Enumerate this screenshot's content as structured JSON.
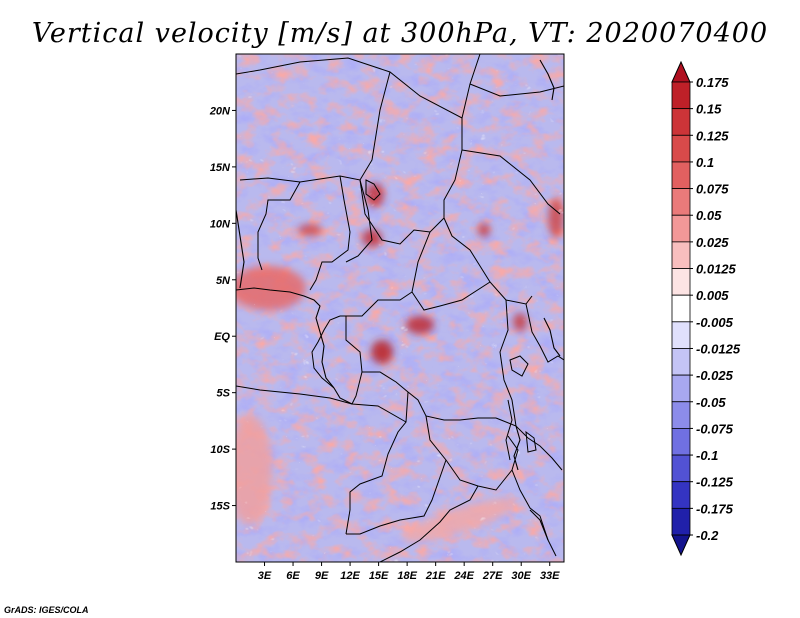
{
  "title": "Vertical velocity [m/s] at 300hPa, VT: 2020070400",
  "credit": "GrADS: IGES/COLA",
  "map": {
    "lon_range": [
      0,
      34.5
    ],
    "lat_range": [
      -20,
      25
    ],
    "lon_ticks": [
      "3E",
      "6E",
      "9E",
      "12E",
      "15E",
      "18E",
      "21E",
      "24E",
      "27E",
      "30E",
      "33E"
    ],
    "lat_ticks": [
      "20N",
      "15N",
      "10N",
      "5N",
      "EQ",
      "5S",
      "10S",
      "15S"
    ]
  },
  "colorbar": {
    "labels": [
      "0.175",
      "0.15",
      "0.125",
      "0.1",
      "0.075",
      "0.05",
      "0.025",
      "0.0125",
      "0.005",
      "-0.005",
      "-0.0125",
      "-0.025",
      "-0.05",
      "-0.075",
      "-0.1",
      "-0.125",
      "-0.175",
      "-0.2"
    ],
    "colors": [
      "#b01020",
      "#be2028",
      "#cc3438",
      "#d84a4a",
      "#e26060",
      "#ea7a7a",
      "#f29898",
      "#f8bebe",
      "#fde4e4",
      "#ffffff",
      "#e0e0fc",
      "#c4c4f6",
      "#a8a8f0",
      "#8c8cea",
      "#7070e2",
      "#5252d4",
      "#3434c2",
      "#2020aa",
      "#14148e"
    ]
  }
}
